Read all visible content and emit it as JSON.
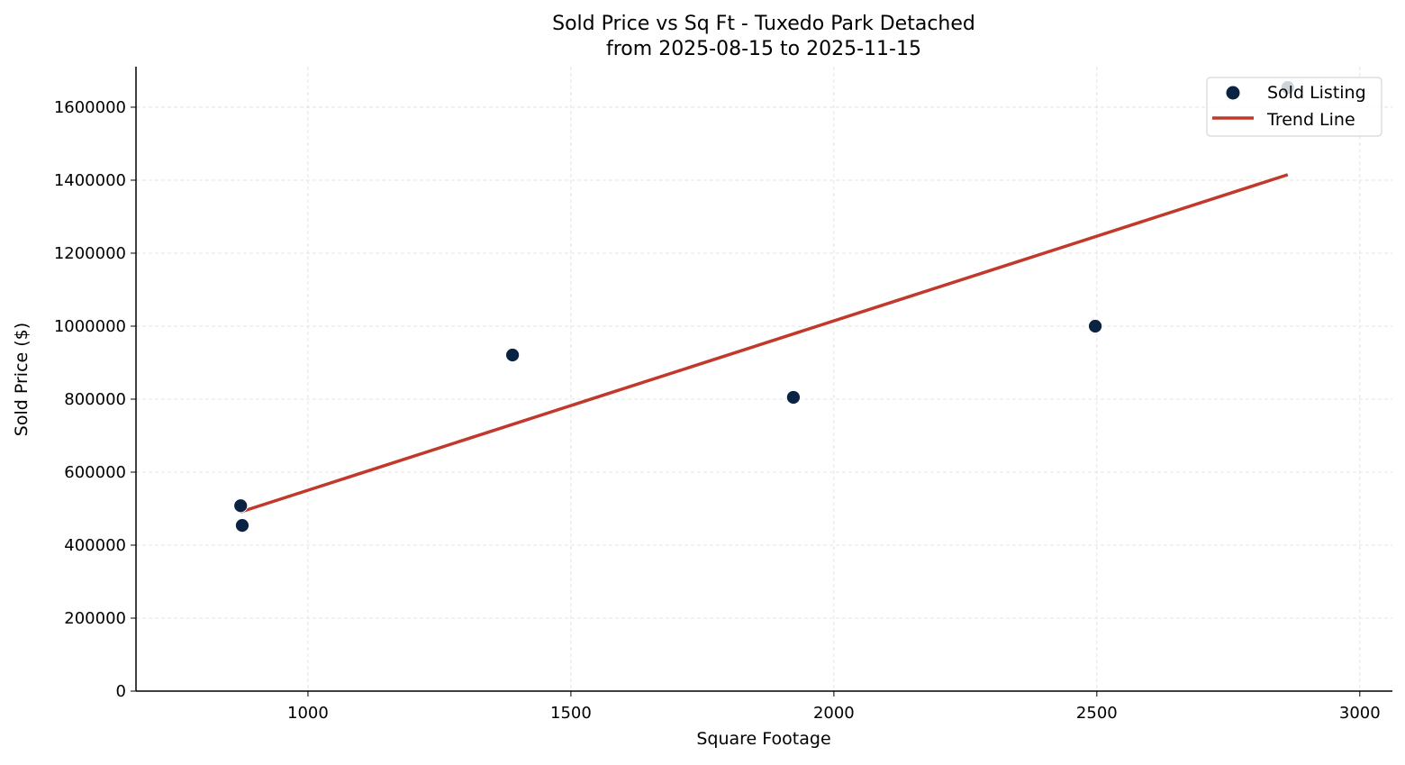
{
  "chart_data": {
    "type": "scatter",
    "title": "Sold Price vs Sq Ft - Tuxedo Park Detached",
    "subtitle": "from 2025-08-15 to 2025-11-15",
    "xlabel": "Square Footage",
    "ylabel": "Sold Price ($)",
    "xlim": [
      673,
      3062
    ],
    "ylim": [
      0,
      1711000
    ],
    "xticks": [
      1000,
      1500,
      2000,
      2500,
      3000
    ],
    "yticks": [
      0,
      200000,
      400000,
      600000,
      800000,
      1000000,
      1200000,
      1400000,
      1600000
    ],
    "grid": true,
    "legend_position": "top-right",
    "series": [
      {
        "name": "Sold Listing",
        "type": "scatter",
        "color": "#0a2342",
        "points": [
          {
            "x": 872,
            "y": 508000
          },
          {
            "x": 875,
            "y": 454000
          },
          {
            "x": 1389,
            "y": 921000
          },
          {
            "x": 1923,
            "y": 805000
          },
          {
            "x": 2497,
            "y": 1000000
          },
          {
            "x": 2863,
            "y": 1654000
          }
        ]
      },
      {
        "name": "Trend Line",
        "type": "line",
        "color": "#c0392b",
        "points": [
          {
            "x": 872,
            "y": 491000
          },
          {
            "x": 2863,
            "y": 1415000
          }
        ]
      }
    ]
  }
}
